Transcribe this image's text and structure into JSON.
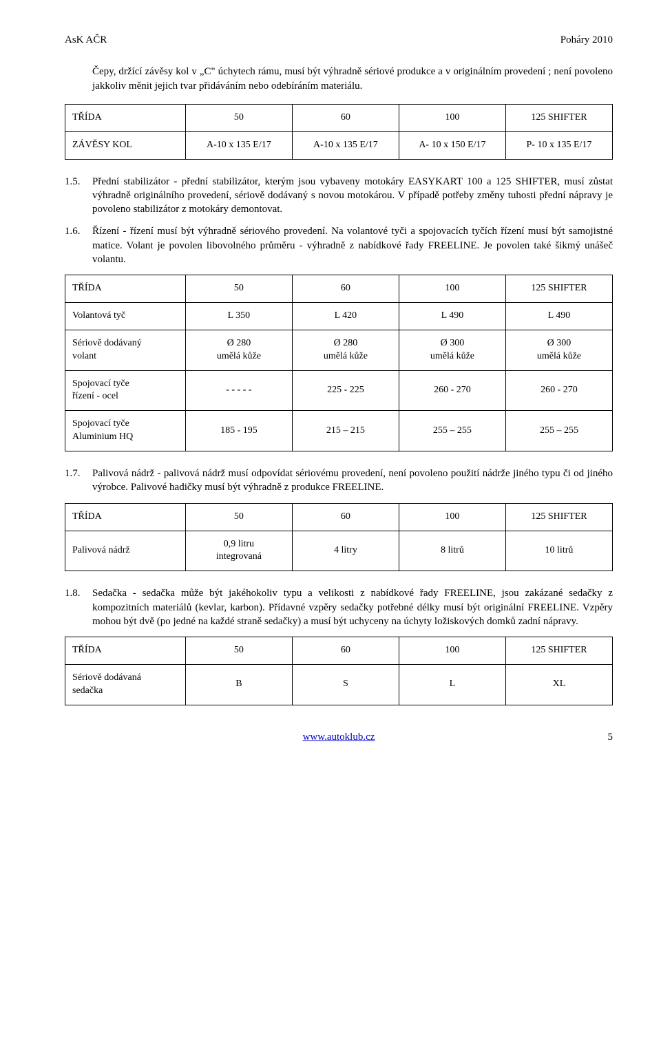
{
  "header": {
    "left": "AsK AČR",
    "right": "Poháry 2010"
  },
  "intro_para": "Čepy, držící závěsy kol v „C\" úchytech rámu, musí být výhradně sériové produkce a v originálním provedení ; není povoleno jakkoliv měnit jejich tvar přidáváním nebo odebíráním materiálu.",
  "table1": {
    "head": [
      "TŘÍDA",
      "50",
      "60",
      "100",
      "125 SHIFTER"
    ],
    "row": [
      "ZÁVĚSY KOL",
      "A-10 x 135 E/17",
      "A-10 x 135  E/17",
      "A- 10 x 150 E/17",
      "P- 10 x 135 E/17"
    ]
  },
  "item15": {
    "num": "1.5.",
    "text_a": "Přední stabilizátor ",
    "text_b": "- ",
    "text_c": "přední stabilizátor, kterým jsou vybaveny motokáry EASYKART 100 a 125 SHIFTER, musí zůstat výhradně originálního provedení, sériově dodávaný s novou motokárou. V případě potřeby změny tuhosti přední nápravy je povoleno stabilizátor z motokáry demontovat."
  },
  "item16": {
    "num": "1.6.",
    "text": "Řízení - řízení musí být výhradně sériového provedení. Na volantové tyči a spojovacích tyčích řízení musí být samojistné matice. Volant je povolen libovolného průměru - výhradně z nabídkové řady FREELINE. Je povolen také šikmý unášeč volantu."
  },
  "table2": {
    "head": [
      "TŘÍDA",
      "50",
      "60",
      "100",
      "125 SHIFTER"
    ],
    "rows": [
      [
        "Volantová tyč",
        "L 350",
        "L 420",
        "L 490",
        "L 490"
      ],
      [
        "Sériově dodávaný\nvolant",
        "Ø 280\numělá kůže",
        "Ø 280\numělá kůže",
        "Ø 300\numělá kůže",
        "Ø 300\numělá kůže"
      ],
      [
        "Spojovací tyče\nřízení - ocel",
        "- - - - -",
        "225  -  225",
        "260 - 270",
        "260 - 270"
      ],
      [
        "Spojovací tyče\nAluminium HQ",
        "185 - 195",
        "215 – 215",
        "255 – 255",
        "255 – 255"
      ]
    ]
  },
  "item17": {
    "num": "1.7.",
    "text": "Palivová nádrž - palivová nádrž musí odpovídat sériovému provedení, není povoleno použití nádrže jiného typu či od jiného výrobce. Palivové hadičky musí být výhradně z produkce FREELINE."
  },
  "table3": {
    "head": [
      "TŘÍDA",
      "50",
      "60",
      "100",
      "125 SHIFTER"
    ],
    "row": [
      "Palivová nádrž",
      "0,9 litru\nintegrovaná",
      "4 litry",
      "8 litrů",
      "10 litrů"
    ]
  },
  "item18": {
    "num": "1.8.",
    "text": "Sedačka - sedačka může být jakéhokoliv typu a velikosti z nabídkové řady FREELINE, jsou zakázané sedačky z kompozitních materiálů (kevlar, karbon). Přídavné vzpěry sedačky potřebné délky musí být originální FREELINE. Vzpěry mohou  být dvě (po jedné na každé straně sedačky) a musí být uchyceny na  úchyty ložiskových domků zadní nápravy."
  },
  "table4": {
    "head": [
      "TŘÍDA",
      "50",
      "60",
      "100",
      "125 SHIFTER"
    ],
    "row": [
      "Sériově dodávaná\nsedačka",
      "B",
      "S",
      "L",
      "XL"
    ]
  },
  "footer": {
    "link": "www.autoklub.cz",
    "page": "5"
  }
}
